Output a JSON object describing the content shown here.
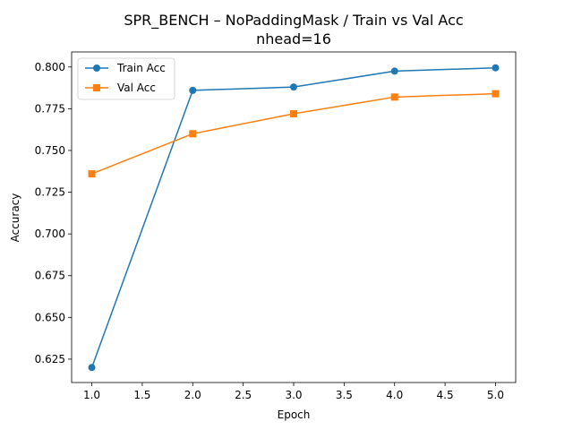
{
  "chart_data": {
    "type": "line",
    "title": "SPR_BENCH – NoPaddingMask / Train vs Val Acc",
    "subtitle": "nhead=16",
    "xlabel": "Epoch",
    "ylabel": "Accuracy",
    "xlim": [
      0.8,
      5.2
    ],
    "ylim": [
      0.611,
      0.809
    ],
    "xticks": [
      "1.0",
      "1.5",
      "2.0",
      "2.5",
      "3.0",
      "3.5",
      "4.0",
      "4.5",
      "5.0"
    ],
    "yticks": [
      "0.625",
      "0.650",
      "0.675",
      "0.700",
      "0.725",
      "0.750",
      "0.775",
      "0.800"
    ],
    "grid": false,
    "legend_position": "top-left",
    "x": [
      1,
      2,
      3,
      4,
      5
    ],
    "series": [
      {
        "name": "Train Acc",
        "color": "#1f77b4",
        "marker": "circle",
        "values": [
          0.62,
          0.786,
          0.788,
          0.7975,
          0.7995
        ]
      },
      {
        "name": "Val Acc",
        "color": "#ff7f0e",
        "marker": "square",
        "values": [
          0.736,
          0.76,
          0.772,
          0.782,
          0.784
        ]
      }
    ]
  }
}
